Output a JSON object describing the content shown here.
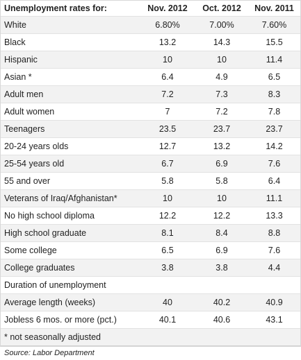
{
  "table": {
    "headers": [
      "Unemployment rates for:",
      "Nov. 2012",
      "Oct. 2012",
      "Nov. 2011"
    ],
    "rows": [
      {
        "label": "White",
        "v1": "6.80%",
        "v2": "7.00%",
        "v3": "7.60%"
      },
      {
        "label": "Black",
        "v1": "13.2",
        "v2": "14.3",
        "v3": "15.5"
      },
      {
        "label": "Hispanic",
        "v1": "10",
        "v2": "10",
        "v3": "11.4"
      },
      {
        "label": "Asian *",
        "v1": "6.4",
        "v2": "4.9",
        "v3": "6.5"
      },
      {
        "label": "Adult men",
        "v1": "7.2",
        "v2": "7.3",
        "v3": "8.3"
      },
      {
        "label": "Adult women",
        "v1": "7",
        "v2": "7.2",
        "v3": "7.8"
      },
      {
        "label": "Teenagers",
        "v1": "23.5",
        "v2": "23.7",
        "v3": "23.7"
      },
      {
        "label": "20-24 years olds",
        "v1": "12.7",
        "v2": "13.2",
        "v3": "14.2"
      },
      {
        "label": "25-54 years old",
        "v1": "6.7",
        "v2": "6.9",
        "v3": "7.6"
      },
      {
        "label": "55 and over",
        "v1": "5.8",
        "v2": "5.8",
        "v3": "6.4"
      },
      {
        "label": "Veterans of Iraq/Afghanistan*",
        "v1": "10",
        "v2": "10",
        "v3": "11.1"
      },
      {
        "label": "No high school diploma",
        "v1": "12.2",
        "v2": "12.2",
        "v3": "13.3"
      },
      {
        "label": "High school graduate",
        "v1": "8.1",
        "v2": "8.4",
        "v3": "8.8"
      },
      {
        "label": "Some college",
        "v1": "6.5",
        "v2": "6.9",
        "v3": "7.6"
      },
      {
        "label": "College graduates",
        "v1": "3.8",
        "v2": "3.8",
        "v3": "4.4"
      },
      {
        "label": "Duration of unemployment",
        "v1": "",
        "v2": "",
        "v3": ""
      },
      {
        "label": "Average length (weeks)",
        "v1": "40",
        "v2": "40.2",
        "v3": "40.9"
      },
      {
        "label": "Jobless 6 mos. or more (pct.)",
        "v1": "40.1",
        "v2": "40.6",
        "v3": "43.1"
      }
    ],
    "footnote": "* not seasonally adjusted",
    "source": "Source: Labor Department"
  },
  "colors": {
    "row_alt": "#f2f2f2",
    "row_line": "#e2e2e2",
    "text": "#222222"
  }
}
